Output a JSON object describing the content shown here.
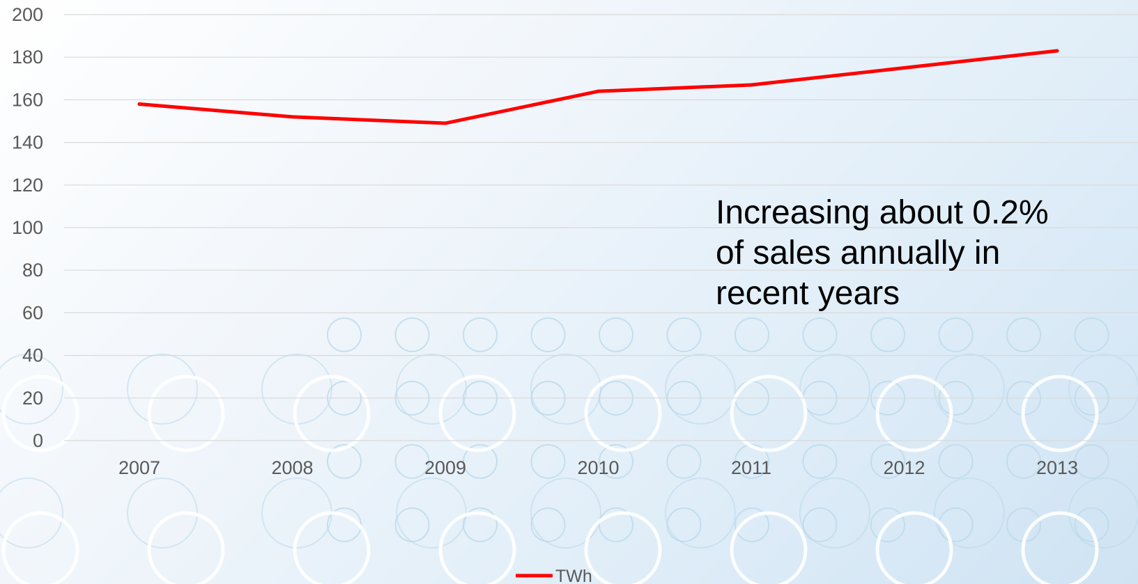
{
  "chart_data": {
    "type": "line",
    "title": "",
    "xlabel": "",
    "ylabel": "",
    "categories": [
      "2007",
      "2008",
      "2009",
      "2010",
      "2011",
      "2012",
      "2013"
    ],
    "series": [
      {
        "name": "TWh",
        "values": [
          158,
          152,
          149,
          164,
          167,
          175,
          183
        ],
        "color": "#ff0000"
      }
    ],
    "ylim": [
      0,
      200
    ],
    "yticks": [
      0,
      20,
      40,
      60,
      80,
      100,
      120,
      140,
      160,
      180,
      200
    ],
    "grid": true,
    "legend": "bottom",
    "annotation": "Increasing about 0.2% of sales annually in recent years",
    "colors": {
      "gridline": "#d9d9d9",
      "tick_text": "#595959",
      "decoration_circles": "#bcd9ea"
    }
  }
}
